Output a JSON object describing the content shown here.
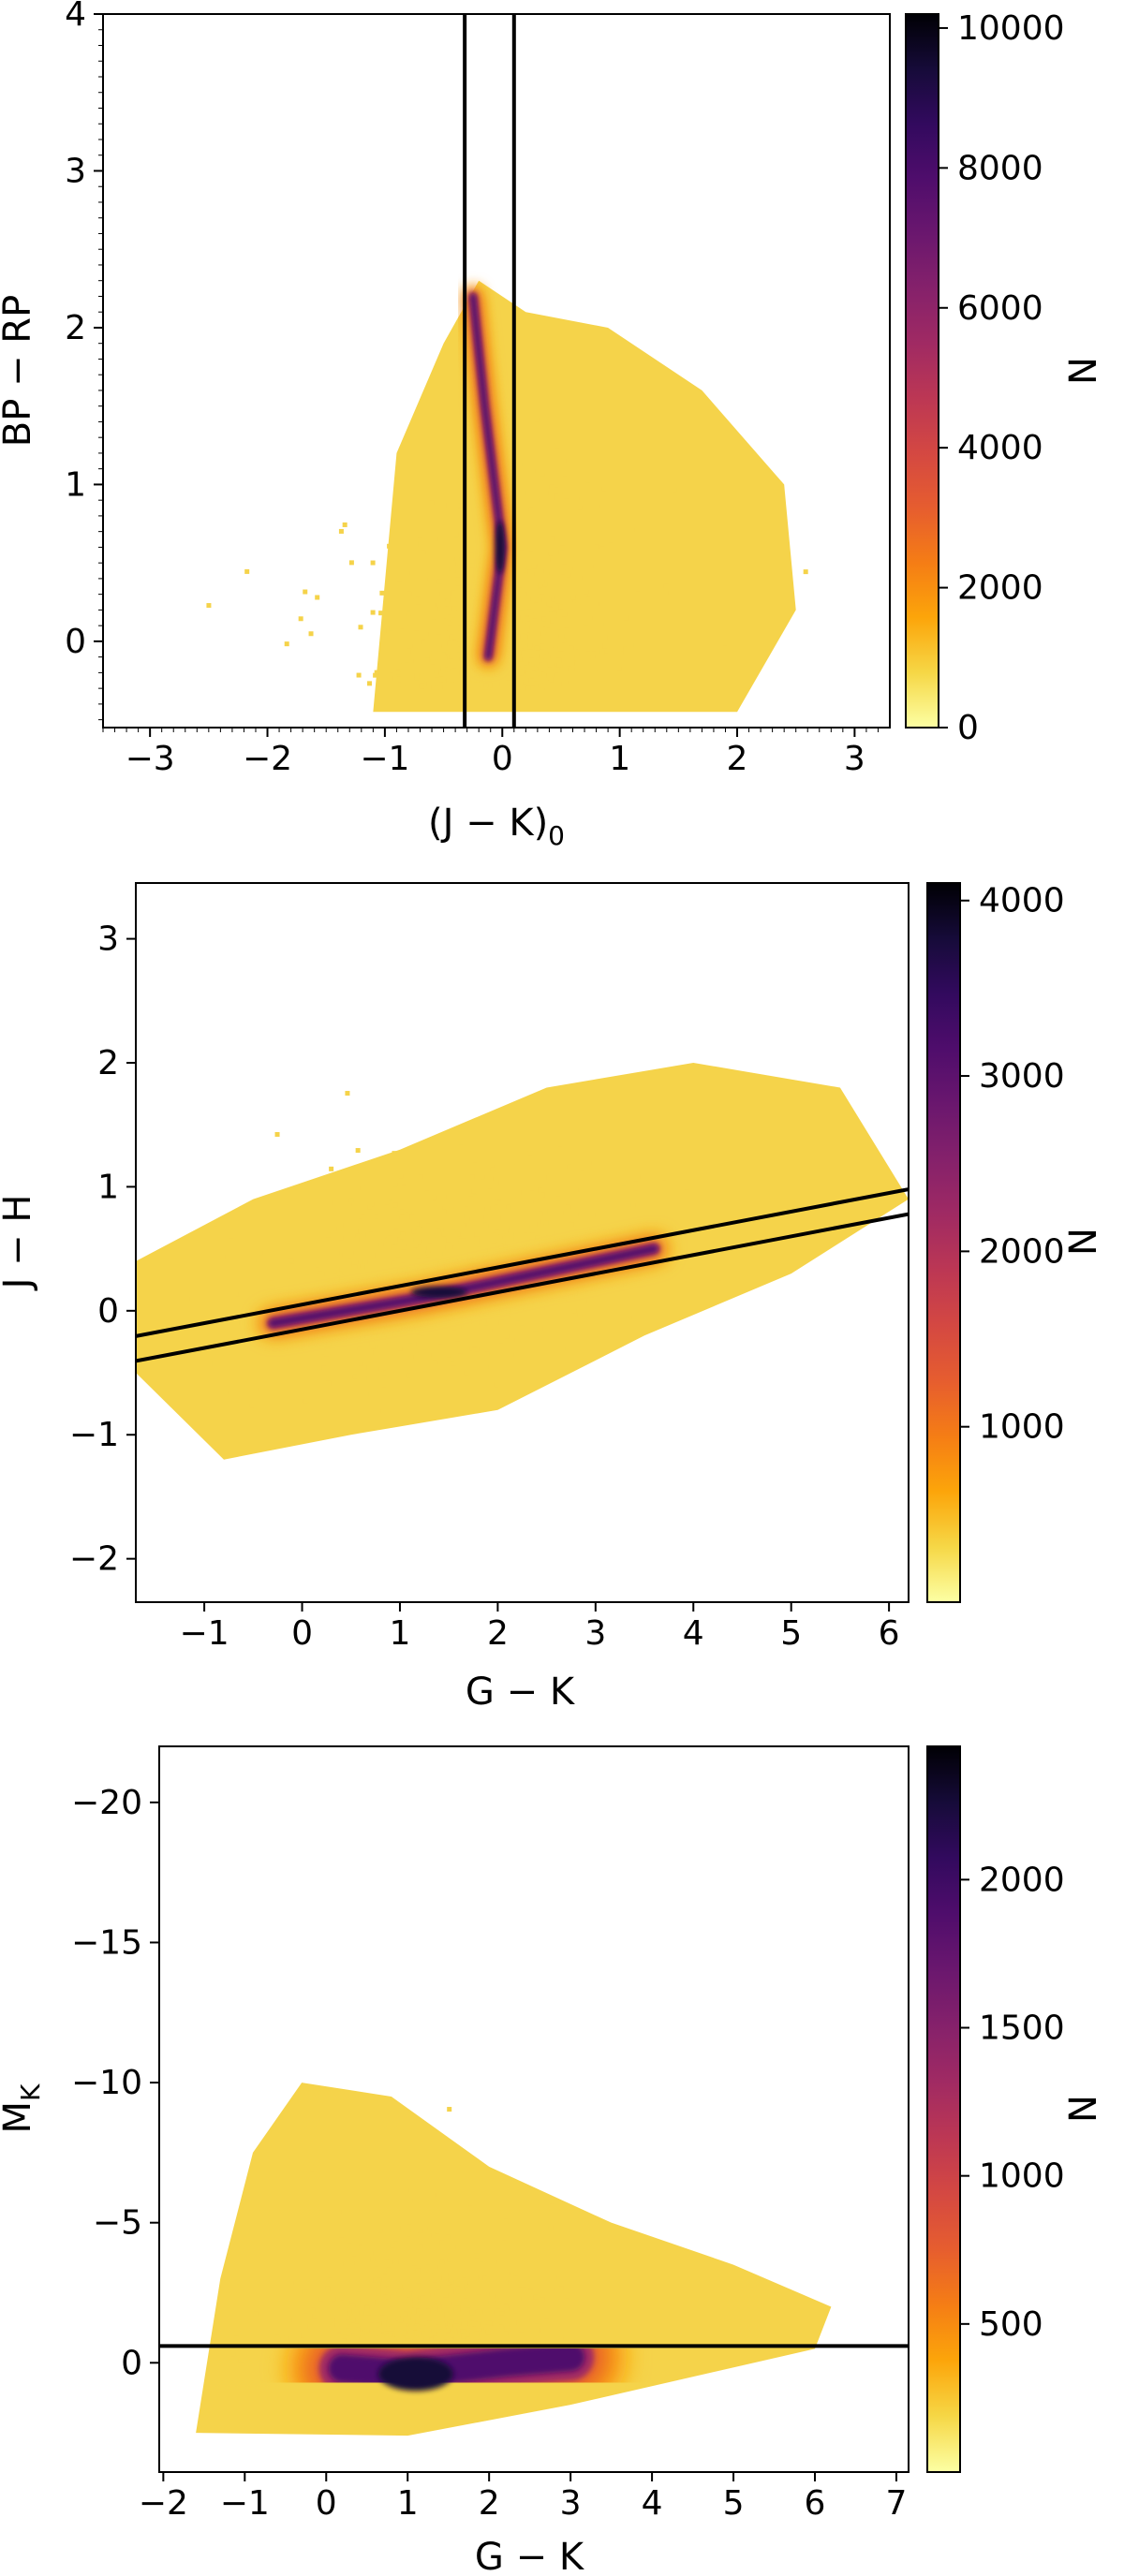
{
  "colors": {
    "cmap": [
      "#fcffa4",
      "#f6d746",
      "#fca50a",
      "#f57d15",
      "#e65d2f",
      "#d44842",
      "#bc3754",
      "#a02a63",
      "#85216b",
      "#6a176e",
      "#4f0d6c",
      "#320a5e",
      "#160b39",
      "#000004"
    ],
    "bg_points": "#f5d34a",
    "line": "#000000"
  },
  "chart_data": [
    {
      "type": "heatmap",
      "xlabel": "(J − K)",
      "xlabel_sub": "0",
      "ylabel": "BP − RP",
      "xlim": [
        -3.4,
        3.3
      ],
      "ylim": [
        -0.55,
        4.0
      ],
      "y_inverted": false,
      "xticks": [
        -3,
        -2,
        -1,
        0,
        1,
        2,
        3
      ],
      "xtick_labels": [
        "−3",
        "−2",
        "−1",
        "0",
        "1",
        "2",
        "3"
      ],
      "yticks": [
        0,
        1,
        2,
        3,
        4
      ],
      "ytick_labels": [
        "0",
        "1",
        "2",
        "3",
        "4"
      ],
      "minor_ticks": true,
      "colorbar": {
        "label": "N",
        "min": 0,
        "max": 10200,
        "ticks": [
          0,
          2000,
          4000,
          6000,
          8000,
          10000
        ],
        "tick_labels": [
          "0",
          "2000",
          "4000",
          "6000",
          "8000",
          "10000"
        ]
      },
      "cut_lines": [
        {
          "kind": "vline",
          "x": -0.32
        },
        {
          "kind": "vline",
          "x": 0.1
        }
      ],
      "density": {
        "ridge": [
          [
            -0.12,
            -0.1
          ],
          [
            0.0,
            0.6
          ],
          [
            -0.15,
            1.5
          ],
          [
            -0.25,
            2.2
          ]
        ],
        "peak": [
          -0.02,
          0.6
        ]
      }
    },
    {
      "type": "heatmap",
      "xlabel": "G − K",
      "ylabel": "J − H",
      "xlim": [
        -1.7,
        6.2
      ],
      "ylim": [
        -2.35,
        3.45
      ],
      "y_inverted": false,
      "xticks": [
        -1,
        0,
        1,
        2,
        3,
        4,
        5,
        6
      ],
      "xtick_labels": [
        "−1",
        "0",
        "1",
        "2",
        "3",
        "4",
        "5",
        "6"
      ],
      "yticks": [
        -2,
        -1,
        0,
        1,
        2,
        3
      ],
      "ytick_labels": [
        "−2",
        "−1",
        "0",
        "1",
        "2",
        "3"
      ],
      "minor_ticks": false,
      "colorbar": {
        "label": "N",
        "min": 0,
        "max": 4100,
        "ticks": [
          1000,
          2000,
          3000,
          4000
        ],
        "tick_labels": [
          "1000",
          "2000",
          "3000",
          "4000"
        ]
      },
      "cut_lines": [
        {
          "kind": "line",
          "slope": 0.15,
          "intercept": 0.05
        },
        {
          "kind": "line",
          "slope": 0.15,
          "intercept": -0.15
        }
      ],
      "density": {
        "ridge": [
          [
            -0.3,
            -0.1
          ],
          [
            1.2,
            0.1
          ],
          [
            2.4,
            0.3
          ],
          [
            3.6,
            0.5
          ]
        ],
        "peak": [
          1.4,
          0.15
        ]
      }
    },
    {
      "type": "heatmap",
      "xlabel": "G − K",
      "ylabel": "M",
      "ylabel_sub": "K",
      "xlim": [
        -2.05,
        7.15
      ],
      "ylim": [
        3.9,
        -22.0
      ],
      "y_inverted": true,
      "xticks": [
        -2,
        -1,
        0,
        1,
        2,
        3,
        4,
        5,
        6,
        7
      ],
      "xtick_labels": [
        "−2",
        "−1",
        "0",
        "1",
        "2",
        "3",
        "4",
        "5",
        "6",
        "7"
      ],
      "yticks": [
        0,
        -5,
        -10,
        -15,
        -20
      ],
      "ytick_labels": [
        "0",
        "−5",
        "−10",
        "−15",
        "−20"
      ],
      "minor_ticks": false,
      "colorbar": {
        "label": "N",
        "min": 0,
        "max": 2450,
        "ticks": [
          500,
          1000,
          1500,
          2000
        ],
        "tick_labels": [
          "500",
          "1000",
          "1500",
          "2000"
        ]
      },
      "cut_lines": [
        {
          "kind": "hline",
          "y": -0.6
        }
      ],
      "density": {
        "ridge": [
          [
            0.2,
            0.2
          ],
          [
            1.0,
            0.4
          ],
          [
            2.2,
            0.0
          ],
          [
            3.0,
            -0.2
          ]
        ],
        "peak": [
          1.1,
          0.4
        ]
      }
    }
  ]
}
